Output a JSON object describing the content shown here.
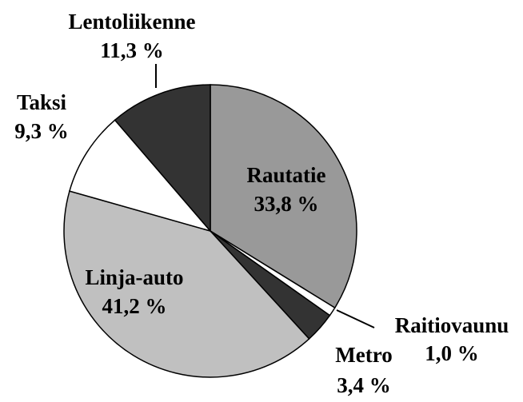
{
  "chart_data": {
    "type": "pie",
    "categories": [
      "Rautatie",
      "Raitiovaunu",
      "Metro",
      "Linja-auto",
      "Taksi",
      "Lentoliikenne"
    ],
    "values": [
      33.8,
      1.0,
      3.4,
      41.2,
      9.3,
      11.3
    ],
    "value_labels": [
      "33,8 %",
      "1,0 %",
      "3,4 %",
      "41,2 %",
      "9,3 %",
      "11,3 %"
    ],
    "colors": [
      "#999999",
      "#ffffff",
      "#333333",
      "#c0c0c0",
      "#ffffff",
      "#333333"
    ]
  }
}
